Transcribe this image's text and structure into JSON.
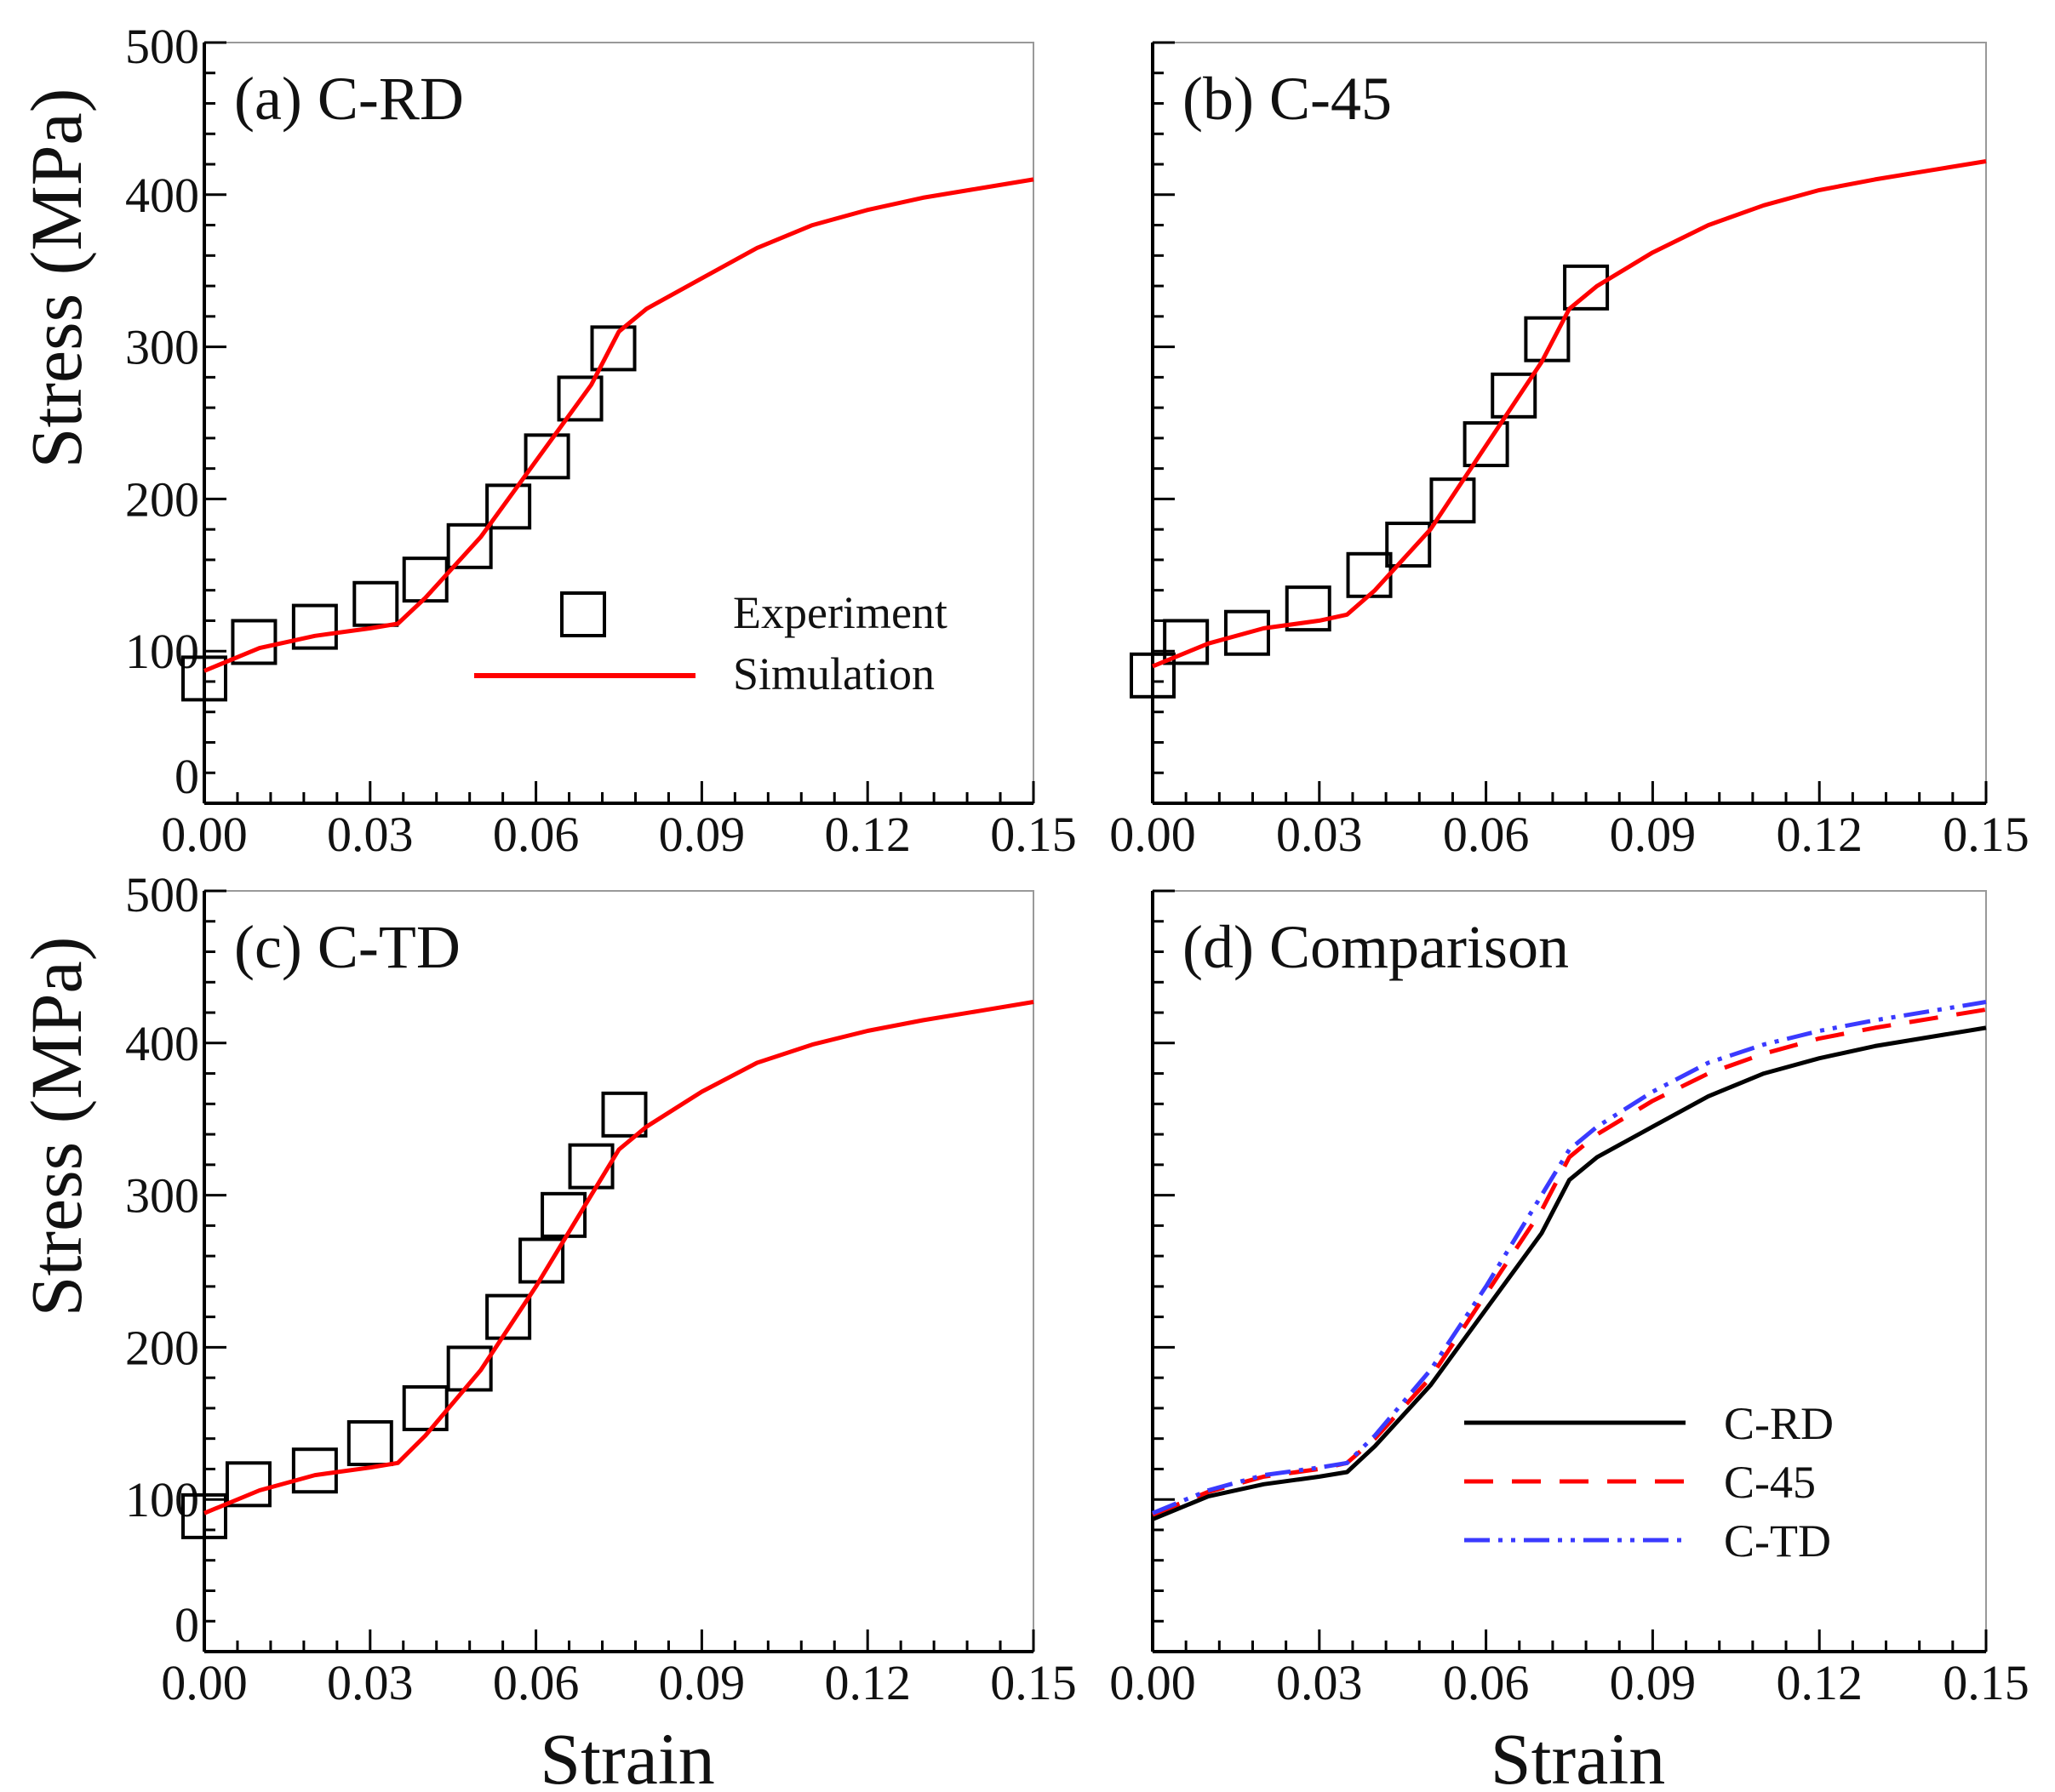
{
  "chart_data": [
    {
      "type": "line",
      "panel": "a",
      "title": "(a) C-RD",
      "xlabel": "",
      "ylabel": "Stress (MPa)",
      "xlim": [
        0,
        0.15
      ],
      "ylim": [
        0,
        500
      ],
      "xticks": [
        "0.00",
        "0.03",
        "0.06",
        "0.09",
        "0.12",
        "0.15"
      ],
      "yticks": [
        "0",
        "100",
        "200",
        "300",
        "400",
        "500"
      ],
      "legend": {
        "placement": "lower-right",
        "entries": [
          "Experiment",
          "Simulation"
        ]
      },
      "series": [
        {
          "name": "Experiment",
          "style": "square-marker",
          "color": "#000000",
          "x": [
            0,
            0.009,
            0.02,
            0.031,
            0.04,
            0.048,
            0.055,
            0.062,
            0.068,
            0.074
          ],
          "y": [
            82,
            106,
            116,
            131,
            147,
            169,
            195,
            228,
            266,
            299
          ]
        },
        {
          "name": "Simulation",
          "style": "solid",
          "color": "#ff0000",
          "x": [
            0,
            0.01,
            0.02,
            0.03,
            0.035,
            0.04,
            0.05,
            0.06,
            0.07,
            0.075,
            0.08,
            0.09,
            0.1,
            0.11,
            0.12,
            0.13,
            0.14,
            0.15
          ],
          "y": [
            87,
            102,
            110,
            115,
            118,
            135,
            175,
            225,
            275,
            310,
            325,
            345,
            365,
            380,
            390,
            398,
            404,
            410
          ]
        }
      ]
    },
    {
      "type": "line",
      "panel": "b",
      "title": "(b) C-45",
      "xlabel": "",
      "ylabel": "",
      "xlim": [
        0,
        0.15
      ],
      "ylim": [
        0,
        500
      ],
      "xticks": [
        "0.00",
        "0.03",
        "0.06",
        "0.09",
        "0.12",
        "0.15"
      ],
      "yticks": [],
      "series": [
        {
          "name": "Experiment",
          "style": "square-marker",
          "color": "#000000",
          "x": [
            0,
            0.006,
            0.017,
            0.028,
            0.039,
            0.046,
            0.054,
            0.06,
            0.065,
            0.071,
            0.078
          ],
          "y": [
            84,
            106,
            112,
            128,
            150,
            170,
            199,
            236,
            268,
            305,
            339
          ]
        },
        {
          "name": "Simulation",
          "style": "solid",
          "color": "#ff0000",
          "x": [
            0,
            0.01,
            0.02,
            0.03,
            0.035,
            0.04,
            0.05,
            0.06,
            0.07,
            0.075,
            0.08,
            0.09,
            0.1,
            0.11,
            0.12,
            0.13,
            0.14,
            0.15
          ],
          "y": [
            90,
            105,
            115,
            120,
            124,
            140,
            180,
            235,
            290,
            325,
            340,
            362,
            380,
            393,
            403,
            410,
            416,
            422
          ]
        }
      ]
    },
    {
      "type": "line",
      "panel": "c",
      "title": "(c) C-TD",
      "xlabel": "Strain",
      "ylabel": "Stress (MPa)",
      "xlim": [
        0,
        0.15
      ],
      "ylim": [
        0,
        500
      ],
      "xticks": [
        "0.00",
        "0.03",
        "0.06",
        "0.09",
        "0.12",
        "0.15"
      ],
      "yticks": [
        "0",
        "100",
        "200",
        "300",
        "400",
        "500"
      ],
      "series": [
        {
          "name": "Experiment",
          "style": "square-marker",
          "color": "#000000",
          "x": [
            0,
            0.008,
            0.02,
            0.03,
            0.04,
            0.048,
            0.055,
            0.061,
            0.065,
            0.07,
            0.076
          ],
          "y": [
            89,
            110,
            119,
            137,
            160,
            186,
            220,
            257,
            287,
            319,
            353
          ]
        },
        {
          "name": "Simulation",
          "style": "solid",
          "color": "#ff0000",
          "x": [
            0,
            0.01,
            0.02,
            0.03,
            0.035,
            0.04,
            0.05,
            0.06,
            0.07,
            0.075,
            0.08,
            0.09,
            0.1,
            0.11,
            0.12,
            0.13,
            0.14,
            0.15
          ],
          "y": [
            91,
            106,
            116,
            121,
            124,
            142,
            185,
            240,
            300,
            330,
            345,
            368,
            387,
            399,
            408,
            415,
            421,
            427
          ]
        }
      ]
    },
    {
      "type": "line",
      "panel": "d",
      "title": "(d) Comparison",
      "xlabel": "Strain",
      "ylabel": "",
      "xlim": [
        0,
        0.15
      ],
      "ylim": [
        0,
        500
      ],
      "xticks": [
        "0.00",
        "0.03",
        "0.06",
        "0.09",
        "0.12",
        "0.15"
      ],
      "yticks": [],
      "legend": {
        "placement": "lower-right",
        "entries": [
          "C-RD",
          "C-45",
          "C-TD"
        ]
      },
      "series": [
        {
          "name": "C-RD",
          "style": "solid",
          "color": "#000000",
          "x": [
            0,
            0.01,
            0.02,
            0.03,
            0.035,
            0.04,
            0.05,
            0.06,
            0.07,
            0.075,
            0.08,
            0.09,
            0.1,
            0.11,
            0.12,
            0.13,
            0.14,
            0.15
          ],
          "y": [
            87,
            102,
            110,
            115,
            118,
            135,
            175,
            225,
            275,
            310,
            325,
            345,
            365,
            380,
            390,
            398,
            404,
            410
          ]
        },
        {
          "name": "C-45",
          "style": "dashed",
          "color": "#ff0000",
          "x": [
            0,
            0.01,
            0.02,
            0.03,
            0.035,
            0.04,
            0.05,
            0.06,
            0.07,
            0.075,
            0.08,
            0.09,
            0.1,
            0.11,
            0.12,
            0.13,
            0.14,
            0.15
          ],
          "y": [
            90,
            105,
            115,
            120,
            124,
            140,
            180,
            235,
            290,
            325,
            340,
            362,
            380,
            393,
            403,
            410,
            416,
            422
          ]
        },
        {
          "name": "C-TD",
          "style": "dash-dot-dot",
          "color": "#3a3aff",
          "x": [
            0,
            0.01,
            0.02,
            0.03,
            0.035,
            0.04,
            0.05,
            0.06,
            0.07,
            0.075,
            0.08,
            0.09,
            0.1,
            0.11,
            0.12,
            0.13,
            0.14,
            0.15
          ],
          "y": [
            91,
            106,
            116,
            121,
            124,
            142,
            185,
            240,
            300,
            330,
            345,
            368,
            387,
            399,
            408,
            415,
            421,
            427
          ]
        }
      ]
    }
  ]
}
